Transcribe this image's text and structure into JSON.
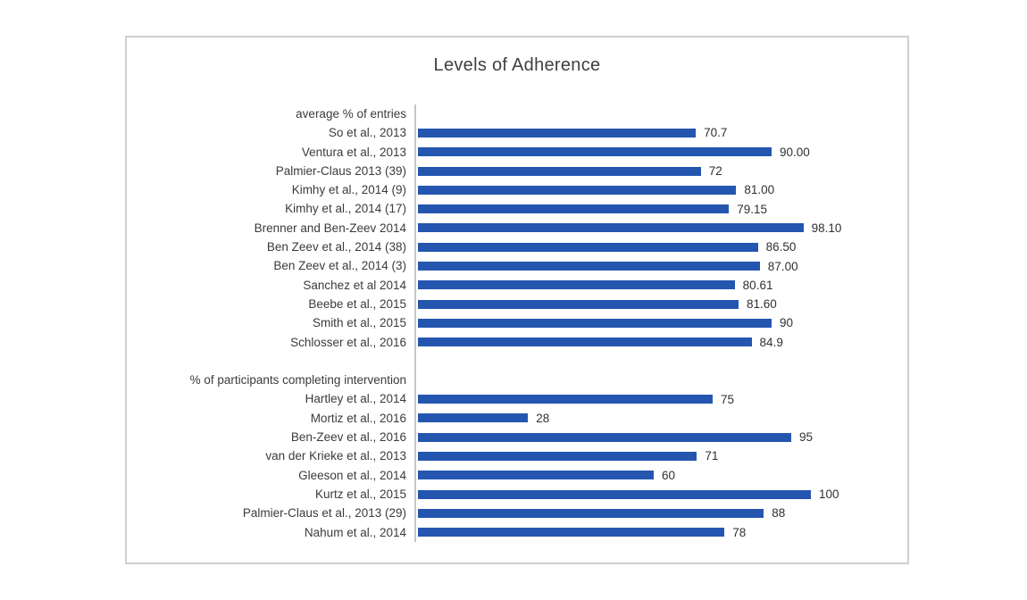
{
  "colors": {
    "bar": "#2456b0",
    "axis": "#c6c6c6",
    "panel_border": "#cfcfcf",
    "title_text": "#3f3f3f",
    "label_text": "#3b3b3b",
    "background": "#ffffff"
  },
  "chart_data": {
    "type": "bar",
    "orientation": "horizontal",
    "title": "Levels of Adherence",
    "xlabel": "",
    "ylabel": "",
    "xlim": [
      0,
      100
    ],
    "grid": false,
    "legend": false,
    "value_labels": true,
    "groups": [
      {
        "label": "average % of entries",
        "items": [
          {
            "label": "So et al., 2013",
            "value": 70.7,
            "value_label": "70.7"
          },
          {
            "label": "Ventura et al., 2013",
            "value": 90.0,
            "value_label": "90.00"
          },
          {
            "label": "Palmier-Claus 2013 (39)",
            "value": 72.0,
            "value_label": "72"
          },
          {
            "label": "Kimhy et al., 2014 (9)",
            "value": 81.0,
            "value_label": "81.00"
          },
          {
            "label": "Kimhy et al., 2014 (17)",
            "value": 79.15,
            "value_label": "79.15"
          },
          {
            "label": "Brenner and Ben-Zeev 2014",
            "value": 98.1,
            "value_label": "98.10"
          },
          {
            "label": "Ben Zeev et al., 2014 (38)",
            "value": 86.5,
            "value_label": "86.50"
          },
          {
            "label": "Ben Zeev et al., 2014 (3)",
            "value": 87.0,
            "value_label": "87.00"
          },
          {
            "label": "Sanchez  et al 2014",
            "value": 80.61,
            "value_label": "80.61"
          },
          {
            "label": "Beebe et al., 2015",
            "value": 81.6,
            "value_label": "81.60"
          },
          {
            "label": "Smith et al., 2015",
            "value": 90.0,
            "value_label": "90"
          },
          {
            "label": "Schlosser et al., 2016",
            "value": 84.9,
            "value_label": "84.9"
          }
        ]
      },
      {
        "label": "% of participants completing intervention",
        "items": [
          {
            "label": "Hartley et al., 2014",
            "value": 75.0,
            "value_label": "75"
          },
          {
            "label": "Mortiz et al., 2016",
            "value": 28.0,
            "value_label": "28"
          },
          {
            "label": "Ben-Zeev et al., 2016",
            "value": 95.0,
            "value_label": "95"
          },
          {
            "label": "van der Krieke et al., 2013",
            "value": 71.0,
            "value_label": "71"
          },
          {
            "label": "Gleeson et al., 2014",
            "value": 60.0,
            "value_label": "60"
          },
          {
            "label": "Kurtz et al., 2015",
            "value": 100.0,
            "value_label": "100"
          },
          {
            "label": "Palmier-Claus et al., 2013 (29)",
            "value": 88.0,
            "value_label": "88"
          },
          {
            "label": "Nahum et al., 2014",
            "value": 78.0,
            "value_label": "78"
          }
        ]
      }
    ]
  }
}
